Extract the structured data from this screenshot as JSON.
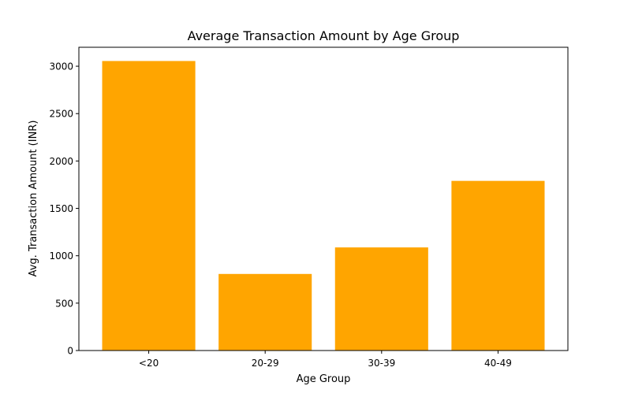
{
  "chart_data": {
    "type": "bar",
    "title": "Average Transaction Amount by Age Group",
    "xlabel": "Age Group",
    "ylabel": "Avg. Transaction Amount (INR)",
    "categories": [
      "<20",
      "20-29",
      "30-39",
      "40-49"
    ],
    "values": [
      3055,
      808,
      1088,
      1790
    ],
    "ylim": [
      0,
      3200
    ],
    "yticks": [
      0,
      500,
      1000,
      1500,
      2000,
      2500,
      3000
    ],
    "bar_color": "#ffa500",
    "grid": false,
    "legend": "none"
  }
}
